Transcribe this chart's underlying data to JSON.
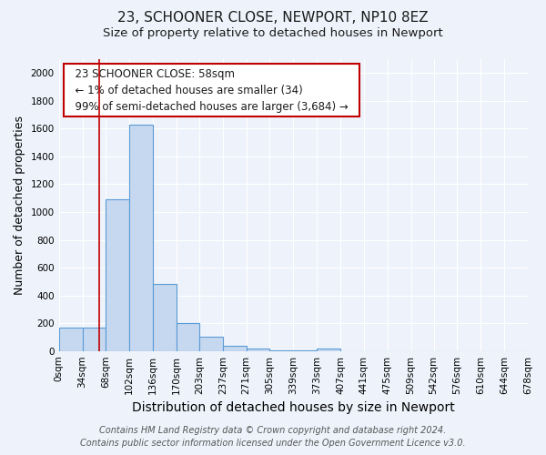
{
  "title1": "23, SCHOONER CLOSE, NEWPORT, NP10 8EZ",
  "title2": "Size of property relative to detached houses in Newport",
  "xlabel": "Distribution of detached houses by size in Newport",
  "ylabel": "Number of detached properties",
  "footer1": "Contains HM Land Registry data © Crown copyright and database right 2024.",
  "footer2": "Contains public sector information licensed under the Open Government Licence v3.0.",
  "annotation_title": "23 SCHOONER CLOSE: 58sqm",
  "annotation_line2": "← 1% of detached houses are smaller (34)",
  "annotation_line3": "99% of semi-detached houses are larger (3,684) →",
  "bar_edges": [
    0,
    34,
    68,
    102,
    136,
    170,
    203,
    237,
    271,
    305,
    339,
    373,
    407,
    441,
    475,
    509,
    542,
    576,
    610,
    644,
    678
  ],
  "bar_heights": [
    170,
    170,
    1090,
    1630,
    480,
    200,
    100,
    40,
    20,
    5,
    5,
    20,
    0,
    0,
    0,
    0,
    0,
    0,
    0,
    0
  ],
  "bar_color": "#c5d8f0",
  "bar_edge_color": "#5b9bd5",
  "vline_color": "#c00000",
  "vline_x": 58,
  "ylim": [
    0,
    2100
  ],
  "yticks": [
    0,
    200,
    400,
    600,
    800,
    1000,
    1200,
    1400,
    1600,
    1800,
    2000
  ],
  "background_color": "#eef3fb",
  "grid_color": "#ffffff",
  "annotation_box_facecolor": "#ffffff",
  "annotation_box_edgecolor": "#c00000",
  "title1_fontsize": 11,
  "title2_fontsize": 9.5,
  "xlabel_fontsize": 10,
  "ylabel_fontsize": 9,
  "tick_fontsize": 7.5,
  "annotation_fontsize": 8.5,
  "footer_fontsize": 7
}
